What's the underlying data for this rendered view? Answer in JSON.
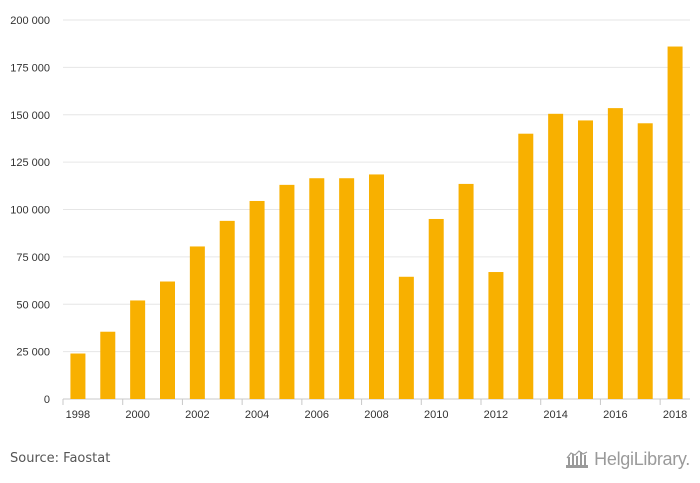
{
  "chart_data": {
    "type": "bar",
    "categories": [
      "1998",
      "1999",
      "2000",
      "2001",
      "2002",
      "2003",
      "2004",
      "2005",
      "2006",
      "2007",
      "2008",
      "2009",
      "2010",
      "2011",
      "2012",
      "2013",
      "2014",
      "2015",
      "2016",
      "2017",
      "2018"
    ],
    "values": [
      24000,
      35500,
      52000,
      62000,
      80500,
      94000,
      104500,
      113000,
      116500,
      116500,
      118500,
      64500,
      95000,
      113500,
      67000,
      140000,
      150500,
      147000,
      153500,
      145500,
      186000
    ],
    "x_tick_labels": [
      "1998",
      "2000",
      "2002",
      "2004",
      "2006",
      "2008",
      "2010",
      "2012",
      "2014",
      "2016",
      "2018"
    ],
    "y_ticks": [
      "0",
      "25 000",
      "50 000",
      "75 000",
      "100 000",
      "125 000",
      "150 000",
      "175 000",
      "200 000"
    ],
    "y_tick_values": [
      0,
      25000,
      50000,
      75000,
      100000,
      125000,
      150000,
      175000,
      200000
    ],
    "ylim": [
      0,
      200000
    ],
    "title": "",
    "xlabel": "",
    "ylabel": "",
    "grid": true,
    "bar_color": "#f8b000",
    "grid_color": "#e6e6e6"
  },
  "footer": {
    "source": "Source: Faostat",
    "brand_prefix": "Helgi",
    "brand_suffix": "Library",
    "brand_dot": "."
  },
  "colors": {
    "bar": "#f8b000",
    "text": "#333333",
    "brand": "#9a9a9a"
  },
  "icons": {
    "brand_logo": "helgi-library-logo-icon"
  }
}
